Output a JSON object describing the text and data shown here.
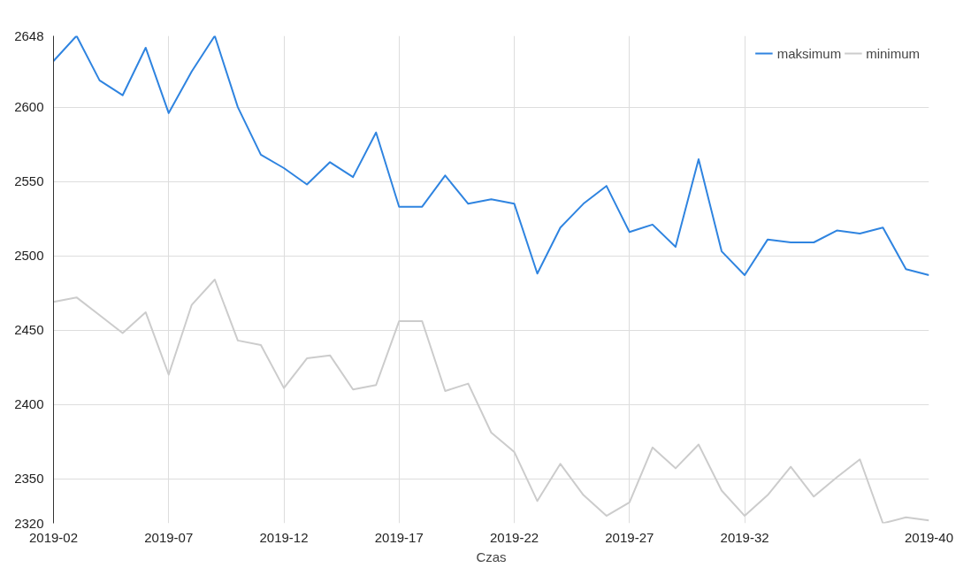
{
  "chart_data": {
    "type": "line",
    "xlabel": "Czas",
    "categories": [
      "2019-02",
      null,
      null,
      null,
      null,
      "2019-07",
      null,
      null,
      null,
      null,
      "2019-12",
      null,
      null,
      null,
      null,
      "2019-17",
      null,
      null,
      null,
      null,
      "2019-22",
      null,
      null,
      null,
      null,
      "2019-27",
      null,
      null,
      null,
      null,
      "2019-32",
      null,
      null,
      null,
      null,
      null,
      null,
      null,
      "2019-40"
    ],
    "series": [
      {
        "name": "maksimum",
        "color": "#2f84e0",
        "values": [
          2631,
          2648,
          2618,
          2608,
          2640,
          2596,
          2624,
          2648,
          2600,
          2568,
          2559,
          2548,
          2563,
          2553,
          2583,
          2533,
          2533,
          2554,
          2535,
          2538,
          2535,
          2488,
          2519,
          2535,
          2547,
          2516,
          2521,
          2506,
          2565,
          2503,
          2487,
          2511,
          2509,
          2509,
          2517,
          2515,
          2519,
          2491,
          2487
        ]
      },
      {
        "name": "minimum",
        "color": "#cccccc",
        "values": [
          2469,
          2472,
          2460,
          2448,
          2462,
          2420,
          2467,
          2484,
          2443,
          2440,
          2411,
          2431,
          2433,
          2410,
          2413,
          2456,
          2456,
          2409,
          2414,
          2381,
          2368,
          2335,
          2360,
          2339,
          2325,
          2334,
          2371,
          2357,
          2373,
          2342,
          2325,
          2339,
          2358,
          2338,
          2351,
          2363,
          2320,
          2324,
          2322
        ]
      }
    ],
    "ylim": [
      2320,
      2648
    ],
    "yticks": [
      2320,
      2350,
      2400,
      2450,
      2500,
      2550,
      2600,
      2648
    ],
    "grid": true,
    "legend": "top right",
    "marker": "none",
    "line_style": "solid"
  }
}
